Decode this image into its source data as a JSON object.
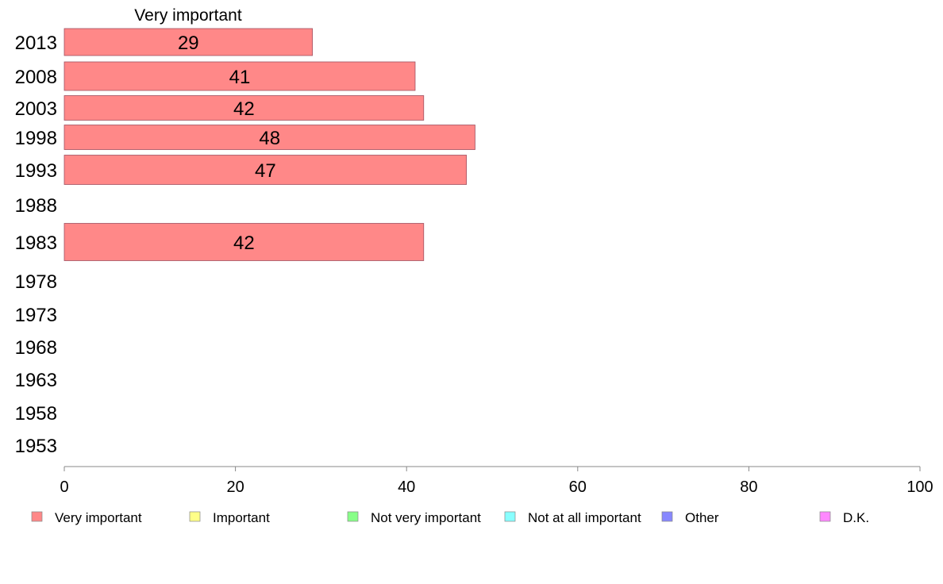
{
  "chart_data": {
    "type": "bar",
    "orientation": "horizontal",
    "stacked": true,
    "categories": [
      "2013",
      "2008",
      "2003",
      "1998",
      "1993",
      "1988",
      "1983",
      "1978",
      "1973",
      "1968",
      "1963",
      "1958",
      "1953"
    ],
    "series": [
      {
        "name": "Very important",
        "color": "#ff8888",
        "values": [
          29,
          41,
          42,
          48,
          47,
          null,
          42,
          null,
          null,
          null,
          null,
          null,
          null
        ]
      },
      {
        "name": "Important",
        "color": "#ffff88",
        "values": [
          null,
          null,
          null,
          null,
          null,
          null,
          null,
          null,
          null,
          null,
          null,
          null,
          null
        ]
      },
      {
        "name": "Not very important",
        "color": "#88ff88",
        "values": [
          null,
          null,
          null,
          null,
          null,
          null,
          null,
          null,
          null,
          null,
          null,
          null,
          null
        ]
      },
      {
        "name": "Not at all important",
        "color": "#88ffff",
        "values": [
          null,
          null,
          null,
          null,
          null,
          null,
          null,
          null,
          null,
          null,
          null,
          null,
          null
        ]
      },
      {
        "name": "Other",
        "color": "#8888ff",
        "values": [
          null,
          null,
          null,
          null,
          null,
          null,
          null,
          null,
          null,
          null,
          null,
          null,
          null
        ]
      },
      {
        "name": "D.K.",
        "color": "#ff88ff",
        "values": [
          null,
          null,
          null,
          null,
          null,
          null,
          null,
          null,
          null,
          null,
          null,
          null,
          null
        ]
      }
    ],
    "data_labels": [
      "29",
      "41",
      "42",
      "48",
      "47",
      "",
      "42",
      "",
      "",
      "",
      "",
      "",
      ""
    ],
    "series_header": "Very important",
    "xlim": [
      0,
      100
    ],
    "xticks": [
      "0",
      "20",
      "40",
      "60",
      "80",
      "100"
    ],
    "grid": false,
    "legend_position": "bottom"
  }
}
